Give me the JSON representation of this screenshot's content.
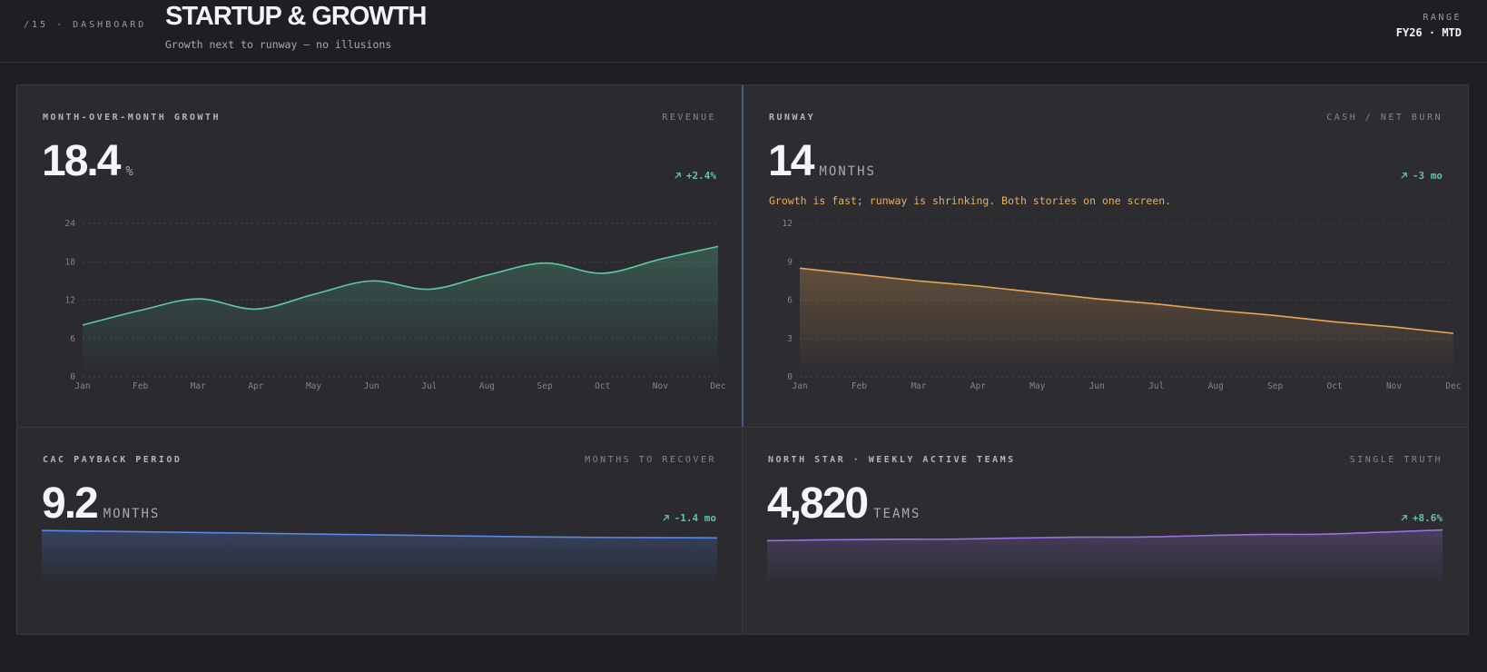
{
  "header": {
    "crumb": "/15 · DASHBOARD",
    "title": "STARTUP & GROWTH",
    "subtitle": "Growth next to runway — no illusions",
    "range_label": "RANGE",
    "range_value": "FY26 · MTD"
  },
  "colors": {
    "growth": "#5ec9a0",
    "runway": "#e8a654",
    "cac": "#5b87e8",
    "north_star": "#9a72e0",
    "delta_up": "#5ec9a0"
  },
  "panels": {
    "growth": {
      "label": "MONTH-OVER-MONTH GROWTH",
      "tag": "REVENUE",
      "value": "18.4",
      "unit": "%",
      "delta": "+2.4%",
      "delta_icon": "arrow-up-right-icon"
    },
    "runway": {
      "label": "RUNWAY",
      "tag": "CASH / NET BURN",
      "value": "14",
      "unit": "MONTHS",
      "delta": "-3 mo",
      "delta_icon": "arrow-up-right-icon",
      "note": "Growth is fast; runway is shrinking. Both stories on one screen."
    },
    "cac": {
      "label": "CAC PAYBACK PERIOD",
      "tag": "MONTHS TO RECOVER",
      "value": "9.2",
      "unit": "MONTHS",
      "delta": "-1.4 mo",
      "delta_icon": "arrow-up-right-icon"
    },
    "north": {
      "label": "NORTH STAR · WEEKLY ACTIVE TEAMS",
      "tag": "SINGLE TRUTH",
      "value": "4,820",
      "unit": "TEAMS",
      "delta": "+8.6%",
      "delta_icon": "arrow-up-right-icon"
    }
  },
  "chart_data": [
    {
      "id": "growth",
      "type": "area",
      "categories": [
        "Jan",
        "Feb",
        "Mar",
        "Apr",
        "May",
        "Jun",
        "Jul",
        "Aug",
        "Sep",
        "Oct",
        "Nov",
        "Dec"
      ],
      "values": [
        8.1,
        10.4,
        12.2,
        10.6,
        12.9,
        15.0,
        13.7,
        15.9,
        17.8,
        16.2,
        18.4,
        20.4
      ],
      "ylim": [
        0,
        24
      ],
      "yticks": [
        0,
        6,
        12,
        18,
        24
      ],
      "grid": true
    },
    {
      "id": "runway",
      "type": "area",
      "categories": [
        "Jan",
        "Feb",
        "Mar",
        "Apr",
        "May",
        "Jun",
        "Jul",
        "Aug",
        "Sep",
        "Oct",
        "Nov",
        "Dec"
      ],
      "values": [
        8.5,
        8.0,
        7.5,
        7.1,
        6.6,
        6.1,
        5.7,
        5.2,
        4.8,
        4.3,
        3.9,
        3.4
      ],
      "ylim": [
        0,
        12
      ],
      "yticks": [
        0,
        3,
        6,
        9,
        12
      ],
      "grid": true
    },
    {
      "id": "cac",
      "type": "area",
      "values": [
        10.6,
        10.45,
        10.3,
        10.15,
        10.0,
        9.85,
        9.7,
        9.55,
        9.4,
        9.3,
        9.25,
        9.2
      ],
      "ylim": [
        0,
        12
      ],
      "axes": false
    },
    {
      "id": "north",
      "type": "area",
      "values": [
        3900,
        3980,
        4020,
        4030,
        4120,
        4200,
        4210,
        4320,
        4430,
        4450,
        4620,
        4820
      ],
      "ylim": [
        0,
        5400
      ],
      "axes": false
    }
  ]
}
